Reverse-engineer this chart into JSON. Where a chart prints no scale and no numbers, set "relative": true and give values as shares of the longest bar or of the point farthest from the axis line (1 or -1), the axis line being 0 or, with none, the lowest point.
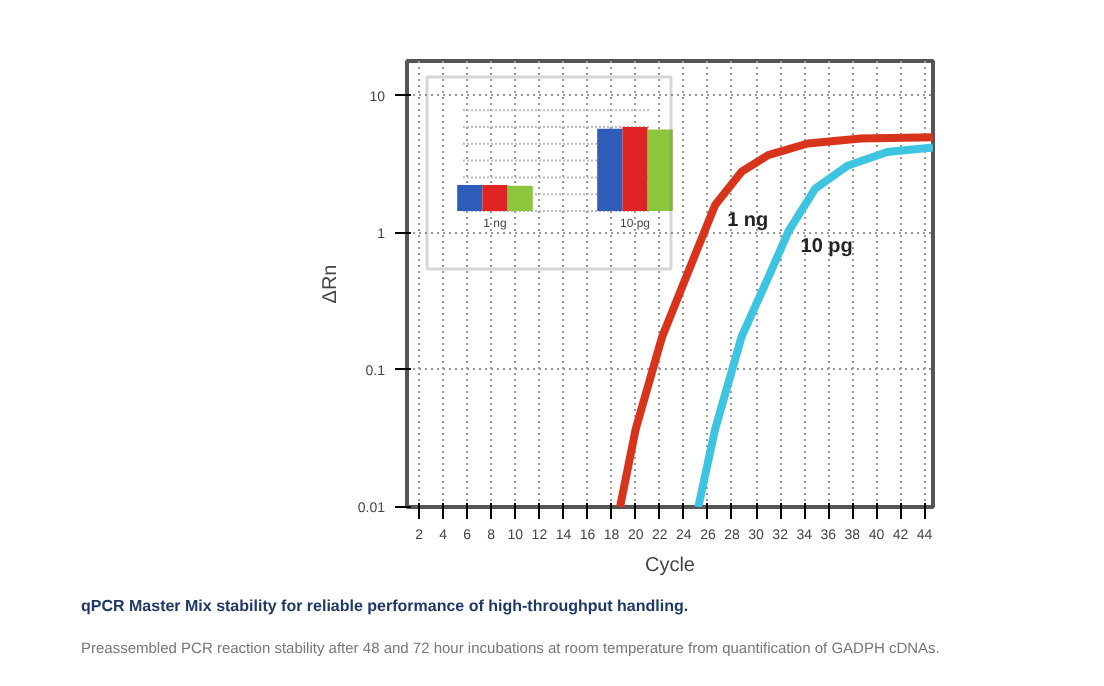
{
  "chart_data": [
    {
      "type": "line",
      "title": "qPCR Master Mix stability for reliable performance of high-throughput handling.",
      "annotations": [
        "Preassembled PCR reaction stability after 48 and 72 hour incubations at room temperature from quantification of GADPH cDNAs."
      ],
      "xlabel": "Cycle",
      "ylabel": "ΔRn",
      "log": "y",
      "xlim": [
        1,
        44.7
      ],
      "ylim": [
        0.01,
        18
      ],
      "xticks": [
        2,
        4,
        6,
        8,
        10,
        12,
        14,
        16,
        18,
        20,
        22,
        24,
        26,
        28,
        30,
        32,
        34,
        36,
        38,
        40,
        42,
        44
      ],
      "yticks": [
        0.01,
        0.1,
        1,
        10
      ],
      "grid": true,
      "line_style": "solid",
      "marker": "none",
      "series": [
        {
          "name": "1 ng",
          "color": "#d8341c",
          "x": [
            18.7,
            20.0,
            22.2,
            24.4,
            26.6,
            28.8,
            31.0,
            34.3,
            38.7,
            44.7
          ],
          "values": [
            0.01,
            0.037,
            0.175,
            0.53,
            1.6,
            2.8,
            3.7,
            4.5,
            4.9,
            5.0
          ]
        },
        {
          "name": "10 pg",
          "color": "#3cc4e0",
          "x": [
            25.2,
            26.6,
            28.8,
            31.0,
            32.7,
            34.9,
            37.6,
            40.9,
            44.7
          ],
          "values": [
            0.01,
            0.037,
            0.175,
            0.47,
            1.03,
            2.1,
            3.1,
            3.9,
            4.2
          ]
        }
      ]
    },
    {
      "type": "bar",
      "relative": true,
      "categories": [
        "1 ng",
        "10 pg"
      ],
      "grid": "y",
      "series": [
        {
          "color": "#2e5cb8",
          "values": [
            0.31,
            0.98
          ]
        },
        {
          "color": "#e02424",
          "values": [
            0.31,
            1.0
          ]
        },
        {
          "color": "#8cc63c",
          "values": [
            0.3,
            0.97
          ]
        }
      ]
    }
  ]
}
